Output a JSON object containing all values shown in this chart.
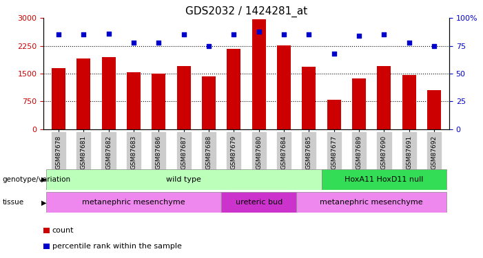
{
  "title": "GDS2032 / 1424281_at",
  "samples": [
    "GSM87678",
    "GSM87681",
    "GSM87682",
    "GSM87683",
    "GSM87686",
    "GSM87687",
    "GSM87688",
    "GSM87679",
    "GSM87680",
    "GSM87684",
    "GSM87685",
    "GSM87677",
    "GSM87689",
    "GSM87690",
    "GSM87691",
    "GSM87692"
  ],
  "counts": [
    1640,
    1900,
    1940,
    1540,
    1490,
    1710,
    1430,
    2160,
    2960,
    2260,
    1680,
    790,
    1370,
    1710,
    1460,
    1050
  ],
  "percentiles": [
    85,
    85,
    86,
    78,
    78,
    85,
    75,
    85,
    88,
    85,
    85,
    68,
    84,
    85,
    78,
    75
  ],
  "bar_color": "#cc0000",
  "dot_color": "#0000cc",
  "ylim_left": [
    0,
    3000
  ],
  "ylim_right": [
    0,
    100
  ],
  "yticks_left": [
    0,
    750,
    1500,
    2250,
    3000
  ],
  "yticks_right": [
    0,
    25,
    50,
    75,
    100
  ],
  "hline_values": [
    750,
    1500,
    2250
  ],
  "genotype_groups": [
    {
      "label": "wild type",
      "start": 0,
      "end": 10,
      "color": "#bbffbb"
    },
    {
      "label": "HoxA11 HoxD11 null",
      "start": 11,
      "end": 15,
      "color": "#33dd55"
    }
  ],
  "tissue_groups": [
    {
      "label": "metanephric mesenchyme",
      "start": 0,
      "end": 6,
      "color": "#ee88ee"
    },
    {
      "label": "ureteric bud",
      "start": 7,
      "end": 9,
      "color": "#cc33cc"
    },
    {
      "label": "metanephric mesenchyme",
      "start": 10,
      "end": 15,
      "color": "#ee88ee"
    }
  ],
  "genotype_label": "genotype/variation",
  "tissue_label": "tissue",
  "legend_count_label": "count",
  "legend_percentile_label": "percentile rank within the sample",
  "title_fontsize": 11,
  "bar_width": 0.55
}
